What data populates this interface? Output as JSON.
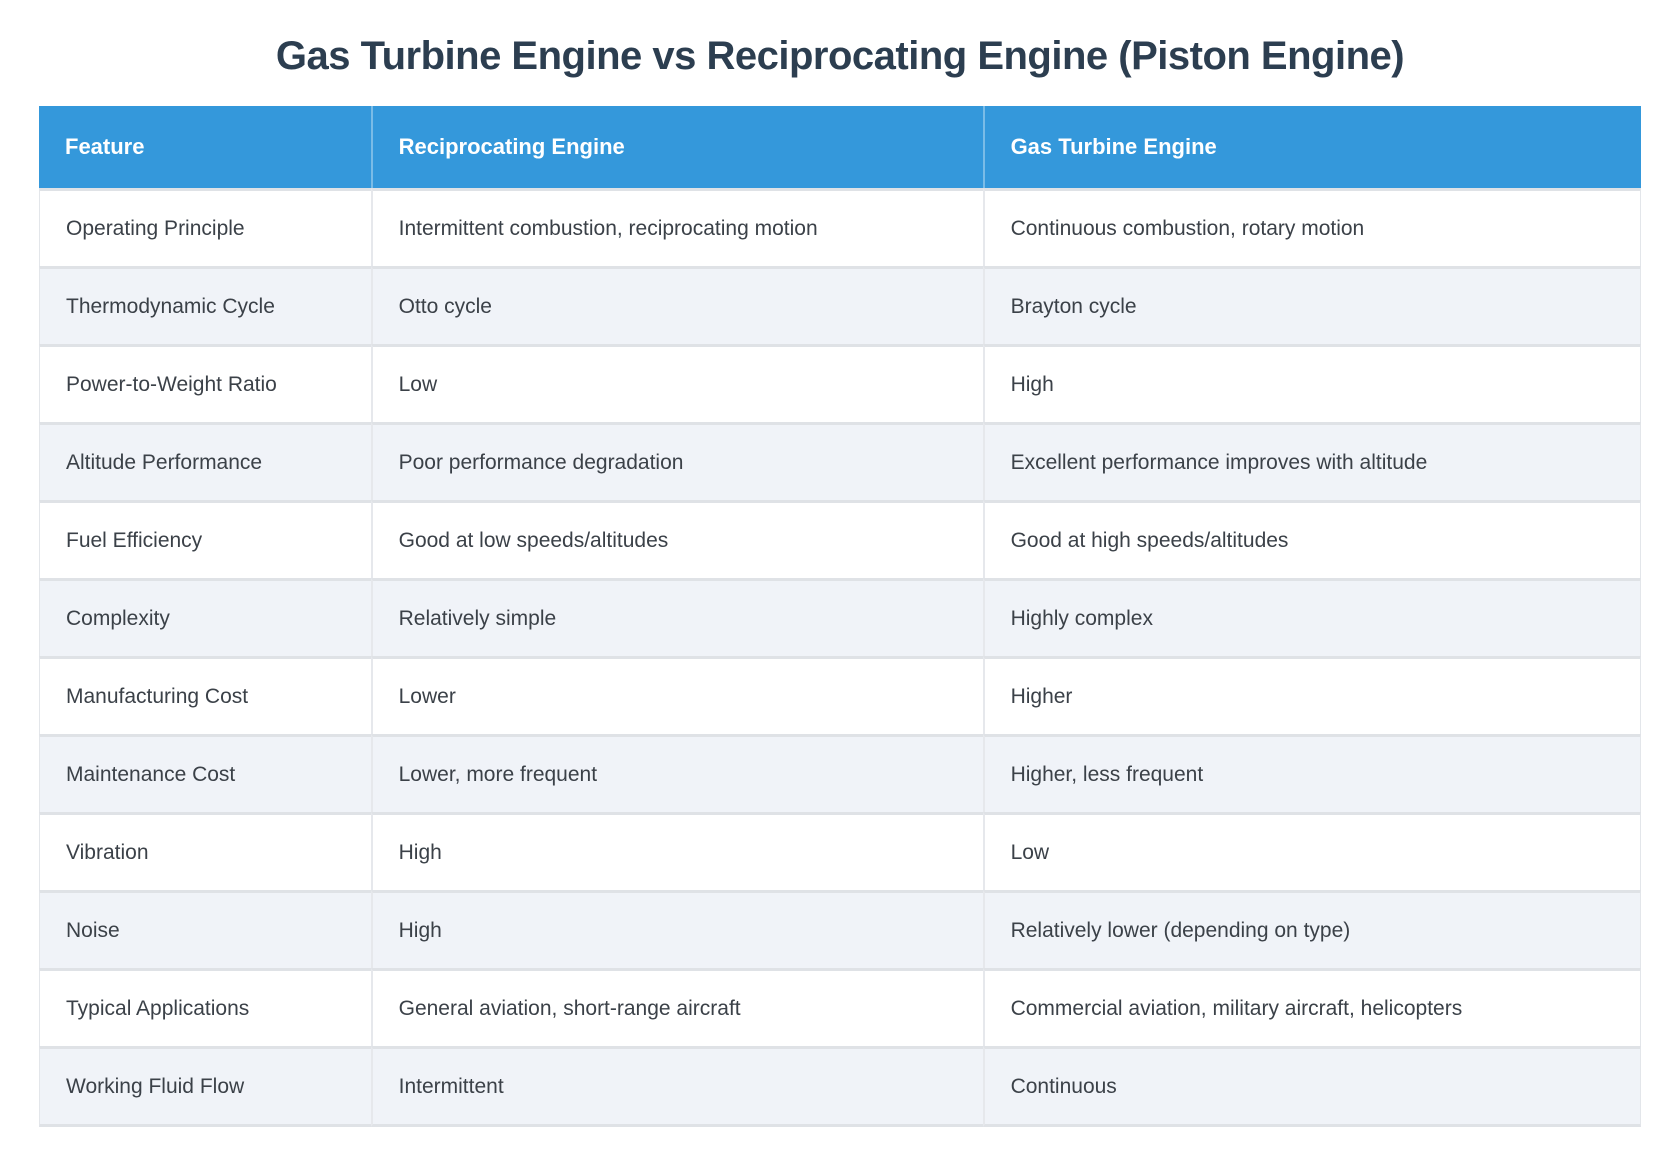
{
  "title": "Gas Turbine Engine vs Reciprocating Engine (Piston Engine)",
  "colors": {
    "header_background": "#3498db",
    "header_text": "#ffffff",
    "title_text": "#2c3e50",
    "body_text": "#3b4148",
    "row_alt_background": "#f0f3f8",
    "row_background": "#ffffff",
    "border": "#dfe2e6"
  },
  "table": {
    "columns": [
      "Feature",
      "Reciprocating Engine",
      "Gas Turbine Engine"
    ],
    "rows": [
      [
        "Operating Principle",
        "Intermittent combustion, reciprocating motion",
        "Continuous combustion, rotary motion"
      ],
      [
        "Thermodynamic Cycle",
        "Otto cycle",
        "Brayton cycle"
      ],
      [
        "Power-to-Weight Ratio",
        "Low",
        "High"
      ],
      [
        "Altitude Performance",
        "Poor performance degradation",
        "Excellent performance improves with altitude"
      ],
      [
        "Fuel Efficiency",
        "Good at low speeds/altitudes",
        "Good at high speeds/altitudes"
      ],
      [
        "Complexity",
        "Relatively simple",
        "Highly complex"
      ],
      [
        "Manufacturing Cost",
        "Lower",
        "Higher"
      ],
      [
        "Maintenance Cost",
        "Lower, more frequent",
        "Higher, less frequent"
      ],
      [
        "Vibration",
        "High",
        "Low"
      ],
      [
        "Noise",
        "High",
        "Relatively lower (depending on type)"
      ],
      [
        "Typical Applications",
        "General aviation, short-range aircraft",
        "Commercial aviation, military aircraft, helicopters"
      ],
      [
        "Working Fluid Flow",
        "Intermittent",
        "Continuous"
      ]
    ]
  }
}
